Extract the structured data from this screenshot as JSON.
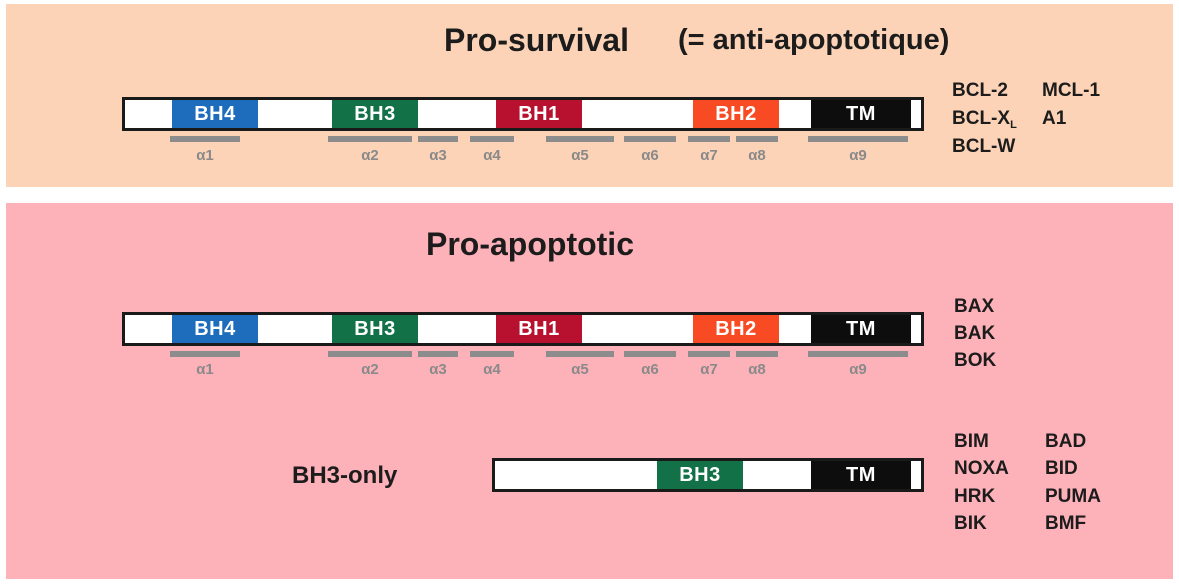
{
  "colors": {
    "pro_survival_bg": "#fcd3b6",
    "pro_apoptotic_bg": "#fdb1b8",
    "BH4": "#1e6dbd",
    "BH3": "#137148",
    "BH1": "#b8112f",
    "BH2": "#f84a23",
    "TM": "#0d0d0d",
    "helix": "#8c8c8c"
  },
  "pro_survival": {
    "title": "Pro-survival",
    "subtitle": "(= anti-apoptotique)",
    "domains": [
      "BH4",
      "BH3",
      "BH1",
      "BH2",
      "TM"
    ],
    "helices": [
      "α1",
      "α2",
      "α3",
      "α4",
      "α5",
      "α6",
      "α7",
      "α8",
      "α9"
    ],
    "proteins_col1": [
      "BCL-2",
      "BCL-X",
      "BCL-W"
    ],
    "bclxl_subscript": "L",
    "proteins_col2": [
      "MCL-1",
      "A1"
    ]
  },
  "pro_apoptotic": {
    "title": "Pro-apoptotic",
    "domains": [
      "BH4",
      "BH3",
      "BH1",
      "BH2",
      "TM"
    ],
    "helices": [
      "α1",
      "α2",
      "α3",
      "α4",
      "α5",
      "α6",
      "α7",
      "α8",
      "α9"
    ],
    "proteins": [
      "BAX",
      "BAK",
      "BOK"
    ]
  },
  "bh3_only": {
    "label": "BH3-only",
    "domains": [
      "BH3",
      "TM"
    ],
    "proteins_col1": [
      "BIM",
      "NOXA",
      "HRK",
      "BIK"
    ],
    "proteins_col2": [
      "BAD",
      "BID",
      "PUMA",
      "BMF"
    ]
  }
}
